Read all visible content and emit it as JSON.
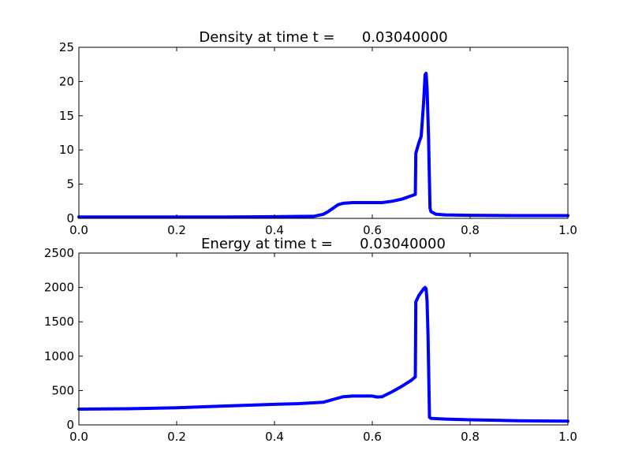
{
  "colors": {
    "series": "#0000ff",
    "axes": "#000000",
    "background": "#ffffff"
  },
  "chart_data": [
    {
      "type": "line",
      "title": "Density at time t =      0.03040000",
      "xlabel": "",
      "ylabel": "",
      "xlim": [
        0.0,
        1.0
      ],
      "ylim": [
        0,
        25
      ],
      "xticks": [
        "0.0",
        "0.2",
        "0.4",
        "0.6",
        "0.8",
        "1.0"
      ],
      "yticks": [
        "0",
        "5",
        "10",
        "15",
        "20",
        "25"
      ],
      "grid": false,
      "series": [
        {
          "x": [
            0.0,
            0.1,
            0.2,
            0.3,
            0.4,
            0.48,
            0.5,
            0.51,
            0.52,
            0.53,
            0.54,
            0.56,
            0.58,
            0.6,
            0.62,
            0.64,
            0.66,
            0.68,
            0.688,
            0.689,
            0.695,
            0.7,
            0.705,
            0.708,
            0.71,
            0.712,
            0.715,
            0.717,
            0.718,
            0.72,
            0.73,
            0.75,
            0.8,
            0.9,
            1.0
          ],
          "y": [
            0.2,
            0.2,
            0.2,
            0.2,
            0.25,
            0.3,
            0.6,
            1.0,
            1.5,
            2.0,
            2.2,
            2.3,
            2.3,
            2.3,
            2.3,
            2.5,
            2.8,
            3.3,
            3.5,
            9.5,
            11.0,
            12.0,
            17.0,
            21.0,
            21.2,
            19.0,
            12.0,
            5.0,
            1.5,
            1.0,
            0.6,
            0.5,
            0.45,
            0.4,
            0.4
          ]
        }
      ]
    },
    {
      "type": "line",
      "title": "Energy at time t =      0.03040000",
      "xlabel": "",
      "ylabel": "",
      "xlim": [
        0.0,
        1.0
      ],
      "ylim": [
        0,
        2500
      ],
      "xticks": [
        "0.0",
        "0.2",
        "0.4",
        "0.6",
        "0.8",
        "1.0"
      ],
      "yticks": [
        "0",
        "500",
        "1000",
        "1500",
        "2000",
        "2500"
      ],
      "grid": false,
      "series": [
        {
          "x": [
            0.0,
            0.1,
            0.2,
            0.3,
            0.4,
            0.45,
            0.5,
            0.52,
            0.54,
            0.56,
            0.58,
            0.6,
            0.61,
            0.62,
            0.64,
            0.66,
            0.68,
            0.688,
            0.689,
            0.695,
            0.7,
            0.705,
            0.708,
            0.71,
            0.712,
            0.714,
            0.716,
            0.717,
            0.72,
            0.75,
            0.8,
            0.9,
            1.0
          ],
          "y": [
            230,
            235,
            250,
            275,
            300,
            310,
            330,
            370,
            410,
            420,
            420,
            420,
            405,
            410,
            480,
            560,
            650,
            700,
            1790,
            1880,
            1930,
            1980,
            2000,
            1980,
            1800,
            1300,
            500,
            110,
            95,
            85,
            75,
            60,
            55
          ]
        }
      ]
    }
  ]
}
